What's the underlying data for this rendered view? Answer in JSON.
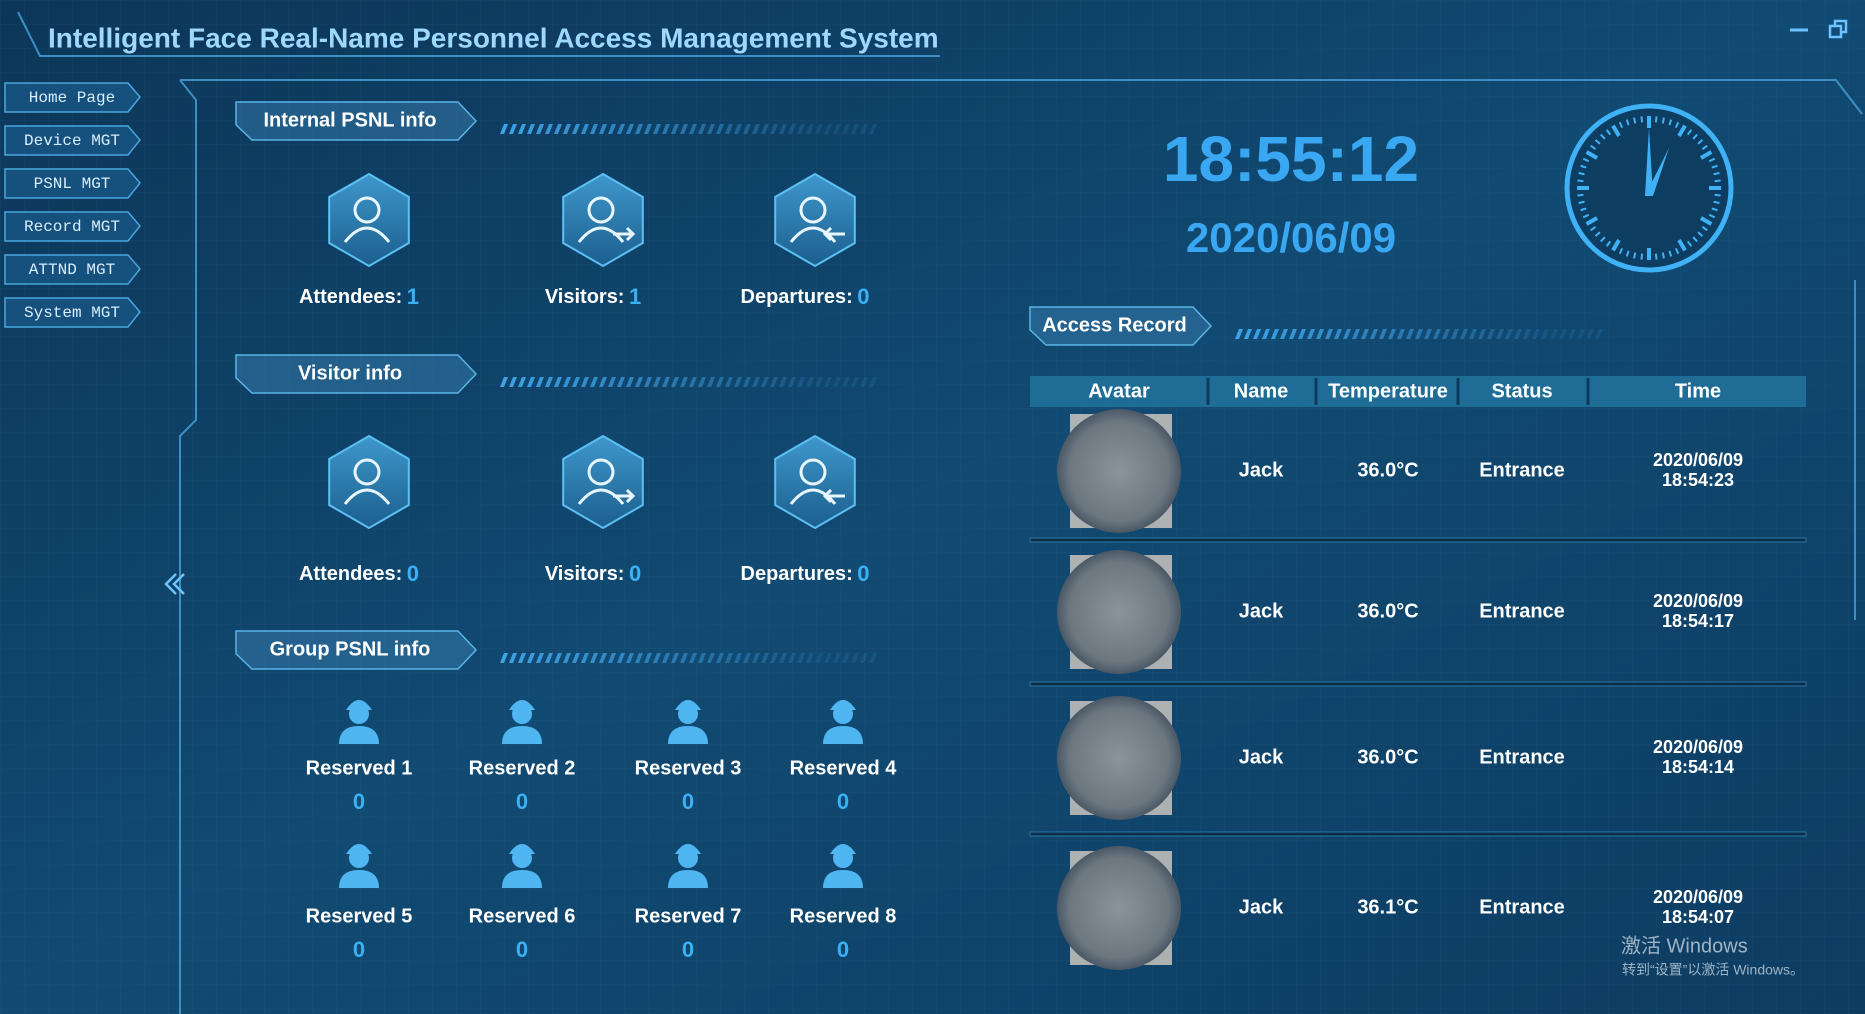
{
  "header": {
    "title": "Intelligent Face Real-Name Personnel Access Management System"
  },
  "nav": [
    "Home Page",
    "Device MGT",
    "PSNL MGT",
    "Record MGT",
    "ATTND MGT",
    "System MGT"
  ],
  "internal": {
    "title": "Internal PSNL info",
    "stats": [
      {
        "label": "Attendees:",
        "value": 1
      },
      {
        "label": "Visitors:",
        "value": 1
      },
      {
        "label": "Departures:",
        "value": 0
      }
    ]
  },
  "visitor": {
    "title": "Visitor info",
    "stats": [
      {
        "label": "Attendees:",
        "value": 0
      },
      {
        "label": "Visitors:",
        "value": 0
      },
      {
        "label": "Departures:",
        "value": 0
      }
    ]
  },
  "group": {
    "title": "Group PSNL info",
    "groups": [
      {
        "name": "Reserved 1",
        "count": 0
      },
      {
        "name": "Reserved 2",
        "count": 0
      },
      {
        "name": "Reserved 3",
        "count": 0
      },
      {
        "name": "Reserved 4",
        "count": 0
      },
      {
        "name": "Reserved 5",
        "count": 0
      },
      {
        "name": "Reserved 6",
        "count": 0
      },
      {
        "name": "Reserved 7",
        "count": 0
      },
      {
        "name": "Reserved 8",
        "count": 0
      }
    ]
  },
  "clock": {
    "time": "18:55:12",
    "date": "2020/06/09"
  },
  "access": {
    "title": "Access Record",
    "columns": [
      "Avatar",
      "Name",
      "Temperature",
      "Status",
      "Time"
    ],
    "rows": [
      {
        "name": "Jack",
        "temperature": "36.0°C",
        "status": "Entrance",
        "date": "2020/06/09",
        "time": "18:54:23"
      },
      {
        "name": "Jack",
        "temperature": "36.0°C",
        "status": "Entrance",
        "date": "2020/06/09",
        "time": "18:54:17"
      },
      {
        "name": "Jack",
        "temperature": "36.0°C",
        "status": "Entrance",
        "date": "2020/06/09",
        "time": "18:54:14"
      },
      {
        "name": "Jack",
        "temperature": "36.1°C",
        "status": "Entrance",
        "date": "2020/06/09",
        "time": "18:54:07"
      }
    ]
  },
  "watermark": {
    "line1": "激活 Windows",
    "line2": "转到“设置”以激活 Windows。"
  }
}
